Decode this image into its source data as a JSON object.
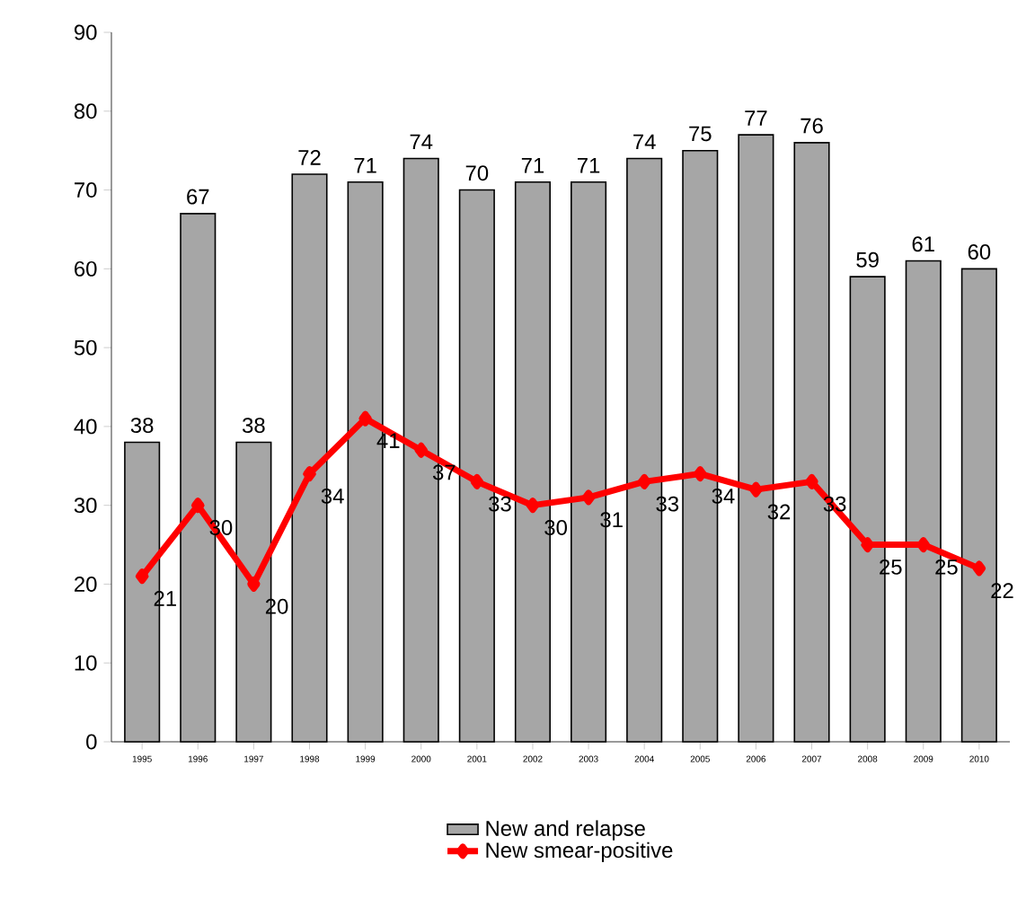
{
  "chart_data": {
    "type": "bar",
    "categories": [
      "1995",
      "1996",
      "1997",
      "1998",
      "1999",
      "2000",
      "2001",
      "2002",
      "2003",
      "2004",
      "2005",
      "2006",
      "2007",
      "2008",
      "2009",
      "2010"
    ],
    "series": [
      {
        "name": "New and relapse",
        "color": "#a6a6a6",
        "values": [
          38,
          67,
          38,
          72,
          71,
          74,
          70,
          71,
          71,
          74,
          75,
          77,
          76,
          59,
          61,
          60
        ]
      },
      {
        "name": "New smear-positive",
        "type": "line",
        "color": "#ff0000",
        "marker": "diamond",
        "values": [
          21,
          30,
          20,
          34,
          41,
          37,
          33,
          30,
          31,
          33,
          34,
          32,
          33,
          25,
          25,
          22
        ]
      }
    ],
    "ylim": [
      0,
      90
    ],
    "yticks": [
      0,
      10,
      20,
      30,
      40,
      50,
      60,
      70,
      80,
      90
    ],
    "data_labels": true,
    "legend": "bottom"
  }
}
